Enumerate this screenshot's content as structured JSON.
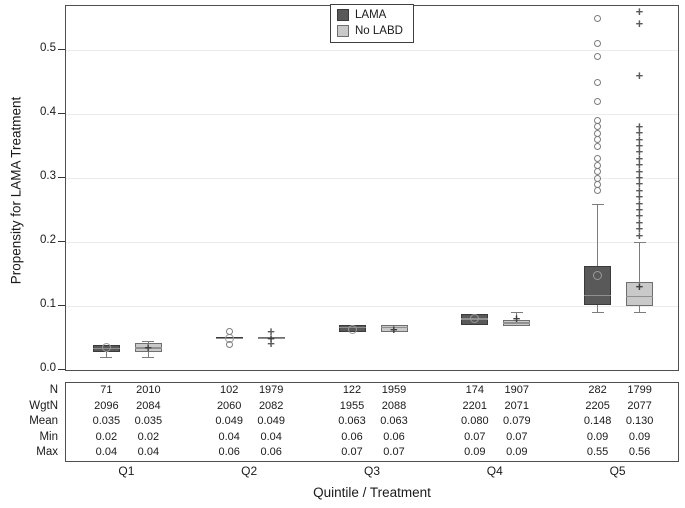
{
  "chart_data": {
    "type": "boxplot",
    "title": "",
    "xlabel": "Quintile / Treatment",
    "ylabel": "Propensity for LAMA Treatment",
    "ylim": [
      0,
      0.57
    ],
    "yticks": [
      "0.0",
      "0.1",
      "0.2",
      "0.3",
      "0.4",
      "0.5"
    ],
    "grid": "horizontal",
    "legend_position": "top-center",
    "categories": [
      "Q1",
      "Q2",
      "Q3",
      "Q4",
      "Q5"
    ],
    "series": [
      {
        "name": "LAMA",
        "fill": "#595959",
        "border": "#3a3a3a",
        "median_color": "#8f8f8f",
        "marker_color": "#9a9a9a",
        "mean_marker": "circle",
        "outlier_marker": "circle",
        "boxes": [
          {
            "whisker_low": 0.02,
            "q1": 0.028,
            "median": 0.034,
            "q3": 0.039,
            "whisker_high": 0.039,
            "mean": 0.035,
            "outliers": []
          },
          {
            "whisker_low": 0.048,
            "q1": 0.048,
            "median": 0.05,
            "q3": 0.052,
            "whisker_high": 0.052,
            "mean": 0.049,
            "outliers": [
              0.06,
              0.04
            ]
          },
          {
            "whisker_low": 0.06,
            "q1": 0.06,
            "median": 0.067,
            "q3": 0.07,
            "whisker_high": 0.07,
            "mean": 0.063,
            "outliers": []
          },
          {
            "whisker_low": 0.07,
            "q1": 0.07,
            "median": 0.08,
            "q3": 0.088,
            "whisker_high": 0.088,
            "mean": 0.08,
            "outliers": []
          },
          {
            "whisker_low": 0.091,
            "q1": 0.102,
            "median": 0.117,
            "q3": 0.162,
            "whisker_high": 0.26,
            "mean": 0.148,
            "outliers": [
              0.55,
              0.51,
              0.49,
              0.45,
              0.42,
              0.39,
              0.38,
              0.37,
              0.36,
              0.35,
              0.33,
              0.32,
              0.31,
              0.3,
              0.29,
              0.28
            ]
          }
        ]
      },
      {
        "name": "No LABD",
        "fill": "#c9c9c9",
        "border": "#6f6f6f",
        "median_color": "#909090",
        "marker_color": "#4f4f4f",
        "mean_marker": "plus",
        "outlier_marker": "plus",
        "boxes": [
          {
            "whisker_low": 0.02,
            "q1": 0.028,
            "median": 0.035,
            "q3": 0.042,
            "whisker_high": 0.045,
            "mean": 0.035,
            "outliers": []
          },
          {
            "whisker_low": 0.048,
            "q1": 0.048,
            "median": 0.05,
            "q3": 0.052,
            "whisker_high": 0.052,
            "mean": 0.049,
            "outliers": [
              0.06,
              0.04
            ]
          },
          {
            "whisker_low": 0.06,
            "q1": 0.06,
            "median": 0.067,
            "q3": 0.07,
            "whisker_high": 0.07,
            "mean": 0.063,
            "outliers": []
          },
          {
            "whisker_low": 0.068,
            "q1": 0.068,
            "median": 0.074,
            "q3": 0.078,
            "whisker_high": 0.09,
            "mean": 0.079,
            "outliers": []
          },
          {
            "whisker_low": 0.091,
            "q1": 0.1,
            "median": 0.115,
            "q3": 0.138,
            "whisker_high": 0.2,
            "mean": 0.13,
            "outliers": [
              0.56,
              0.54,
              0.46,
              0.38,
              0.37,
              0.36,
              0.35,
              0.34,
              0.33,
              0.32,
              0.31,
              0.3,
              0.29,
              0.28,
              0.27,
              0.26,
              0.25,
              0.24,
              0.23,
              0.22,
              0.21
            ]
          }
        ]
      }
    ],
    "stats_table": {
      "row_labels": [
        "N",
        "WgtN",
        "Mean",
        "Min",
        "Max"
      ],
      "columns_per_category": [
        "LAMA",
        "No LABD"
      ],
      "values": {
        "N": [
          [
            "71",
            "2010"
          ],
          [
            "102",
            "1979"
          ],
          [
            "122",
            "1959"
          ],
          [
            "174",
            "1907"
          ],
          [
            "282",
            "1799"
          ]
        ],
        "WgtN": [
          [
            "2096",
            "2084"
          ],
          [
            "2060",
            "2082"
          ],
          [
            "1955",
            "2088"
          ],
          [
            "2201",
            "2071"
          ],
          [
            "2205",
            "2077"
          ]
        ],
        "Mean": [
          [
            "0.035",
            "0.035"
          ],
          [
            "0.049",
            "0.049"
          ],
          [
            "0.063",
            "0.063"
          ],
          [
            "0.080",
            "0.079"
          ],
          [
            "0.148",
            "0.130"
          ]
        ],
        "Min": [
          [
            "0.02",
            "0.02"
          ],
          [
            "0.04",
            "0.04"
          ],
          [
            "0.06",
            "0.06"
          ],
          [
            "0.07",
            "0.07"
          ],
          [
            "0.09",
            "0.09"
          ]
        ],
        "Max": [
          [
            "0.04",
            "0.04"
          ],
          [
            "0.06",
            "0.06"
          ],
          [
            "0.07",
            "0.07"
          ],
          [
            "0.09",
            "0.09"
          ],
          [
            "0.55",
            "0.56"
          ]
        ]
      }
    },
    "legend": [
      {
        "label": "LAMA",
        "color": "#595959"
      },
      {
        "label": "No LABD",
        "color": "#c9c9c9"
      }
    ]
  }
}
